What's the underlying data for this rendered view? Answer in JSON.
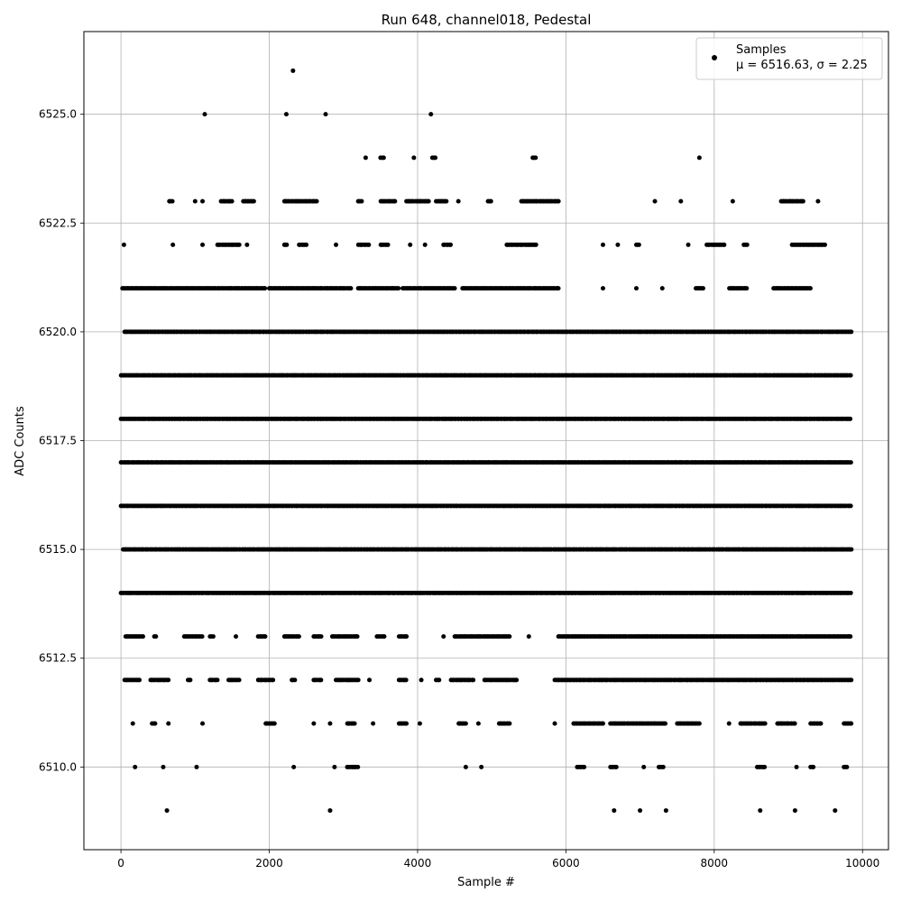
{
  "chart_data": {
    "type": "scatter",
    "title": "Run 648, channel018, Pedestal",
    "xlabel": "Sample #",
    "ylabel": "ADC Counts",
    "xlim": [
      -500,
      10350
    ],
    "ylim": [
      6508.1,
      6526.9
    ],
    "xticks": [
      0,
      2000,
      4000,
      6000,
      8000,
      10000
    ],
    "yticks": [
      6510.0,
      6512.5,
      6515.0,
      6517.5,
      6520.0,
      6522.5,
      6525.0
    ],
    "xtick_labels": [
      "0",
      "2000",
      "4000",
      "6000",
      "8000",
      "10000"
    ],
    "ytick_labels": [
      "6510.0",
      "6512.5",
      "6515.0",
      "6517.5",
      "6520.0",
      "6522.5",
      "6525.0"
    ],
    "grid": true,
    "legend_position": "top-right",
    "marker_color": "#000000",
    "series": [
      {
        "name": "Samples",
        "label_stats": "μ = 6516.63, σ = 2.25",
        "n_samples": 9850,
        "level_occupancy": {
          "6509": [
            [
              620,
              620
            ],
            [
              2820,
              2820
            ],
            [
              6650,
              6650
            ],
            [
              7000,
              7000
            ],
            [
              7350,
              7350
            ],
            [
              8620,
              8620
            ],
            [
              9090,
              9090
            ],
            [
              9630,
              9630
            ]
          ],
          "6510": [
            [
              190,
              190
            ],
            [
              570,
              570
            ],
            [
              1020,
              1020
            ],
            [
              2330,
              2330
            ],
            [
              2880,
              2880
            ],
            [
              3050,
              3200
            ],
            [
              4650,
              4650
            ],
            [
              4860,
              4860
            ],
            [
              6150,
              6250
            ],
            [
              6600,
              6680
            ],
            [
              7050,
              7050
            ],
            [
              7250,
              7320
            ],
            [
              8580,
              8680
            ],
            [
              9110,
              9110
            ],
            [
              9300,
              9350
            ],
            [
              9750,
              9800
            ]
          ],
          "6511": [
            [
              160,
              160
            ],
            [
              420,
              460
            ],
            [
              640,
              640
            ],
            [
              1100,
              1100
            ],
            [
              1950,
              2080
            ],
            [
              2600,
              2600
            ],
            [
              2820,
              2820
            ],
            [
              3050,
              3150
            ],
            [
              3400,
              3400
            ],
            [
              3750,
              3850
            ],
            [
              4030,
              4030
            ],
            [
              4550,
              4650
            ],
            [
              4820,
              4820
            ],
            [
              5100,
              5250
            ],
            [
              5850,
              5850
            ],
            [
              6100,
              6500
            ],
            [
              6600,
              7350
            ],
            [
              7500,
              7800
            ],
            [
              8200,
              8200
            ],
            [
              8350,
              8700
            ],
            [
              8850,
              9100
            ],
            [
              9300,
              9450
            ],
            [
              9750,
              9850
            ]
          ],
          "6512": [
            [
              50,
              250
            ],
            [
              400,
              650
            ],
            [
              900,
              950
            ],
            [
              1200,
              1300
            ],
            [
              1450,
              1600
            ],
            [
              1850,
              2050
            ],
            [
              2300,
              2350
            ],
            [
              2600,
              2700
            ],
            [
              2900,
              3200
            ],
            [
              3350,
              3350
            ],
            [
              3750,
              3850
            ],
            [
              4050,
              4050
            ],
            [
              4250,
              4300
            ],
            [
              4450,
              4750
            ],
            [
              4900,
              5350
            ],
            [
              5850,
              9850
            ]
          ],
          "6513": [
            [
              60,
              300
            ],
            [
              450,
              480
            ],
            [
              850,
              1100
            ],
            [
              1200,
              1250
            ],
            [
              1550,
              1550
            ],
            [
              1850,
              1950
            ],
            [
              2200,
              2400
            ],
            [
              2600,
              2700
            ],
            [
              2850,
              3200
            ],
            [
              3450,
              3550
            ],
            [
              3750,
              3850
            ],
            [
              4350,
              4350
            ],
            [
              4500,
              5250
            ],
            [
              5500,
              5500
            ],
            [
              5900,
              9850
            ]
          ],
          "6514": [
            [
              0,
              9850
            ]
          ],
          "6515": [
            [
              30,
              9850
            ]
          ],
          "6516": [
            [
              0,
              9850
            ]
          ],
          "6517": [
            [
              0,
              9850
            ]
          ],
          "6518": [
            [
              0,
              9850
            ]
          ],
          "6519": [
            [
              0,
              9850
            ]
          ],
          "6520": [
            [
              50,
              9850
            ]
          ],
          "6521": [
            [
              20,
              1950
            ],
            [
              2000,
              3100
            ],
            [
              3200,
              3750
            ],
            [
              3800,
              4500
            ],
            [
              4600,
              5900
            ],
            [
              6500,
              6500
            ],
            [
              6950,
              6950
            ],
            [
              7300,
              7300
            ],
            [
              7750,
              7850
            ],
            [
              8200,
              8450
            ],
            [
              8800,
              9300
            ]
          ],
          "6522": [
            [
              40,
              40
            ],
            [
              700,
              700
            ],
            [
              1100,
              1100
            ],
            [
              1300,
              1600
            ],
            [
              1700,
              1700
            ],
            [
              2200,
              2250
            ],
            [
              2400,
              2500
            ],
            [
              2900,
              2900
            ],
            [
              3200,
              3350
            ],
            [
              3500,
              3600
            ],
            [
              3900,
              3900
            ],
            [
              4100,
              4100
            ],
            [
              4350,
              4450
            ],
            [
              5200,
              5600
            ],
            [
              6500,
              6500
            ],
            [
              6700,
              6700
            ],
            [
              6950,
              7000
            ],
            [
              7650,
              7650
            ],
            [
              7900,
              8150
            ],
            [
              8400,
              8450
            ],
            [
              9050,
              9500
            ]
          ],
          "6523": [
            [
              650,
              700
            ],
            [
              1000,
              1000
            ],
            [
              1100,
              1100
            ],
            [
              1350,
              1500
            ],
            [
              1650,
              1800
            ],
            [
              2200,
              2650
            ],
            [
              3200,
              3250
            ],
            [
              3500,
              3700
            ],
            [
              3850,
              4150
            ],
            [
              4250,
              4400
            ],
            [
              4550,
              4550
            ],
            [
              4950,
              5000
            ],
            [
              5400,
              5900
            ],
            [
              7200,
              7200
            ],
            [
              7550,
              7550
            ],
            [
              8250,
              8250
            ],
            [
              8900,
              9200
            ],
            [
              9400,
              9400
            ]
          ],
          "6524": [
            [
              3300,
              3300
            ],
            [
              3500,
              3550
            ],
            [
              3950,
              3950
            ],
            [
              4200,
              4250
            ],
            [
              5550,
              5600
            ],
            [
              7800,
              7800
            ]
          ],
          "6525": [
            [
              1130,
              1130
            ],
            [
              2230,
              2230
            ],
            [
              2760,
              2760
            ],
            [
              4180,
              4180
            ]
          ],
          "6526": [
            [
              2320,
              2320
            ]
          ]
        }
      }
    ]
  }
}
